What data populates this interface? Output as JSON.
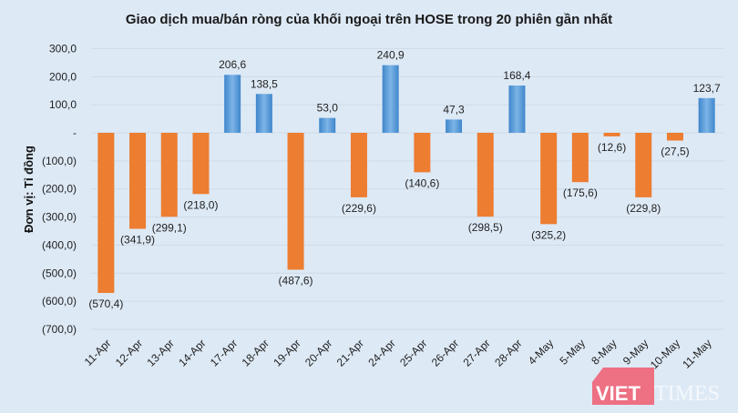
{
  "chart_data": {
    "type": "bar",
    "title": "Giao dịch mua/bán ròng của khối ngoại trên HOSE trong 20 phiên gần nhất",
    "ylabel": "Đơn vị: Tỉ đồng",
    "xlabel": "",
    "ylim": [
      -700,
      300
    ],
    "yticks": [
      300,
      200,
      100,
      0,
      -100,
      -200,
      -300,
      -400,
      -500,
      -600,
      -700
    ],
    "ytick_labels": [
      "300,0",
      "200,0",
      "100,0",
      "-",
      "(100,0)",
      "(200,0)",
      "(300,0)",
      "(400,0)",
      "(500,0)",
      "(600,0)",
      "(700,0)"
    ],
    "grid": true,
    "categories": [
      "11-Apr",
      "12-Apr",
      "13-Apr",
      "14-Apr",
      "17-Apr",
      "18-Apr",
      "19-Apr",
      "20-Apr",
      "21-Apr",
      "24-Apr",
      "25-Apr",
      "26-Apr",
      "27-Apr",
      "28-Apr",
      "4-May",
      "5-May",
      "8-May",
      "9-May",
      "10-May",
      "11-May"
    ],
    "values": [
      -570.4,
      -341.9,
      -299.1,
      -218.0,
      206.6,
      138.5,
      -487.6,
      53.0,
      -229.6,
      240.9,
      -140.6,
      47.3,
      -298.5,
      168.4,
      -325.2,
      -175.6,
      -12.6,
      -229.8,
      -27.5,
      123.7
    ],
    "data_labels": [
      "(570,4)",
      "(341,9)",
      "(299,1)",
      "(218,0)",
      "206,6",
      "138,5",
      "(487,6)",
      "53,0",
      "(229,6)",
      "240,9",
      "(140,6)",
      "47,3",
      "(298,5)",
      "168,4",
      "(325,2)",
      "(175,6)",
      "(12,6)",
      "(229,8)",
      "(27,5)",
      "123,7"
    ],
    "colors": {
      "positive": "#5b9bd5",
      "negative": "#ed7d31",
      "background": "#dde9f5",
      "grid": "#cfdbe8"
    }
  },
  "watermark": {
    "brand": "VIETTIMES",
    "left": "VIET",
    "right": "TIMES",
    "color": "#f05a6e"
  }
}
